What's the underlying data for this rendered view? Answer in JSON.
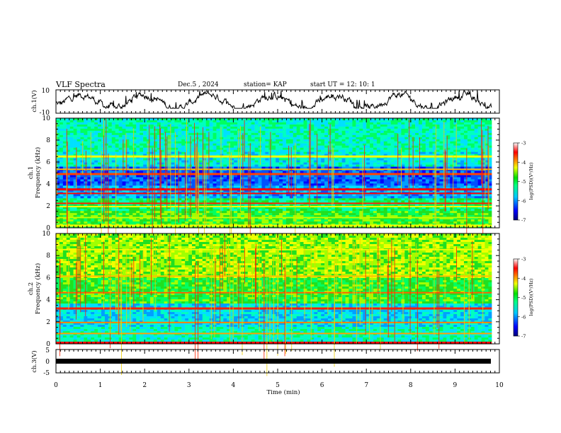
{
  "header": {
    "title": "VLF Spectra",
    "date": "Dec.5  , 2024",
    "station": "station= KAP",
    "start": "start  UT  =   12: 10: 1"
  },
  "chart_data": [
    {
      "type": "line",
      "name": "ch1-waveform",
      "ylabel": "ch.1(V)",
      "ylim": [
        -10,
        10
      ],
      "yticks": [
        "10",
        "-10"
      ],
      "xlim": [
        0,
        9.83
      ],
      "description_values": "noisy waveform roughly between -6 and +9 V"
    },
    {
      "type": "heatmap",
      "name": "ch1-spectrogram",
      "ylabel": "ch.1\nFrequency  (kHz)",
      "ylabel_lines": [
        "ch.1",
        "Frequency  (kHz)"
      ],
      "ylim": [
        0,
        10
      ],
      "yticks": [
        "0",
        "2",
        "4",
        "6",
        "8",
        "10"
      ],
      "xlim": [
        0,
        9.83
      ],
      "colorbar": {
        "label": "log(PSD)(V²/Hz)",
        "min": -7,
        "max": -3,
        "ticks": [
          "-3",
          "-4",
          "-5",
          "-6",
          "-7"
        ]
      }
    },
    {
      "type": "heatmap",
      "name": "ch2-spectrogram",
      "ylabel_lines": [
        "ch.2",
        "Frequency  (kHz)"
      ],
      "ylim": [
        0,
        10
      ],
      "yticks": [
        "0",
        "2",
        "4",
        "6",
        "8",
        "10"
      ],
      "xlim": [
        0,
        9.83
      ],
      "colorbar": {
        "label": "log(PSD)(V²/Hz)",
        "min": -7,
        "max": -3,
        "ticks": [
          "-3",
          "-4",
          "-5",
          "-6",
          "-7"
        ]
      }
    },
    {
      "type": "line",
      "name": "ch3-waveform",
      "ylabel": "ch.3(V)",
      "ylim": [
        -5,
        5
      ],
      "yticks": [
        "5",
        "0",
        "-5"
      ],
      "xlim": [
        0,
        9.83
      ],
      "constant_value": -0.7
    }
  ],
  "xaxis": {
    "label": "Time  (min)",
    "range": [
      0,
      10
    ],
    "ticks": [
      "0",
      "1",
      "2",
      "3",
      "4",
      "5",
      "6",
      "7",
      "8",
      "9",
      "10"
    ]
  }
}
